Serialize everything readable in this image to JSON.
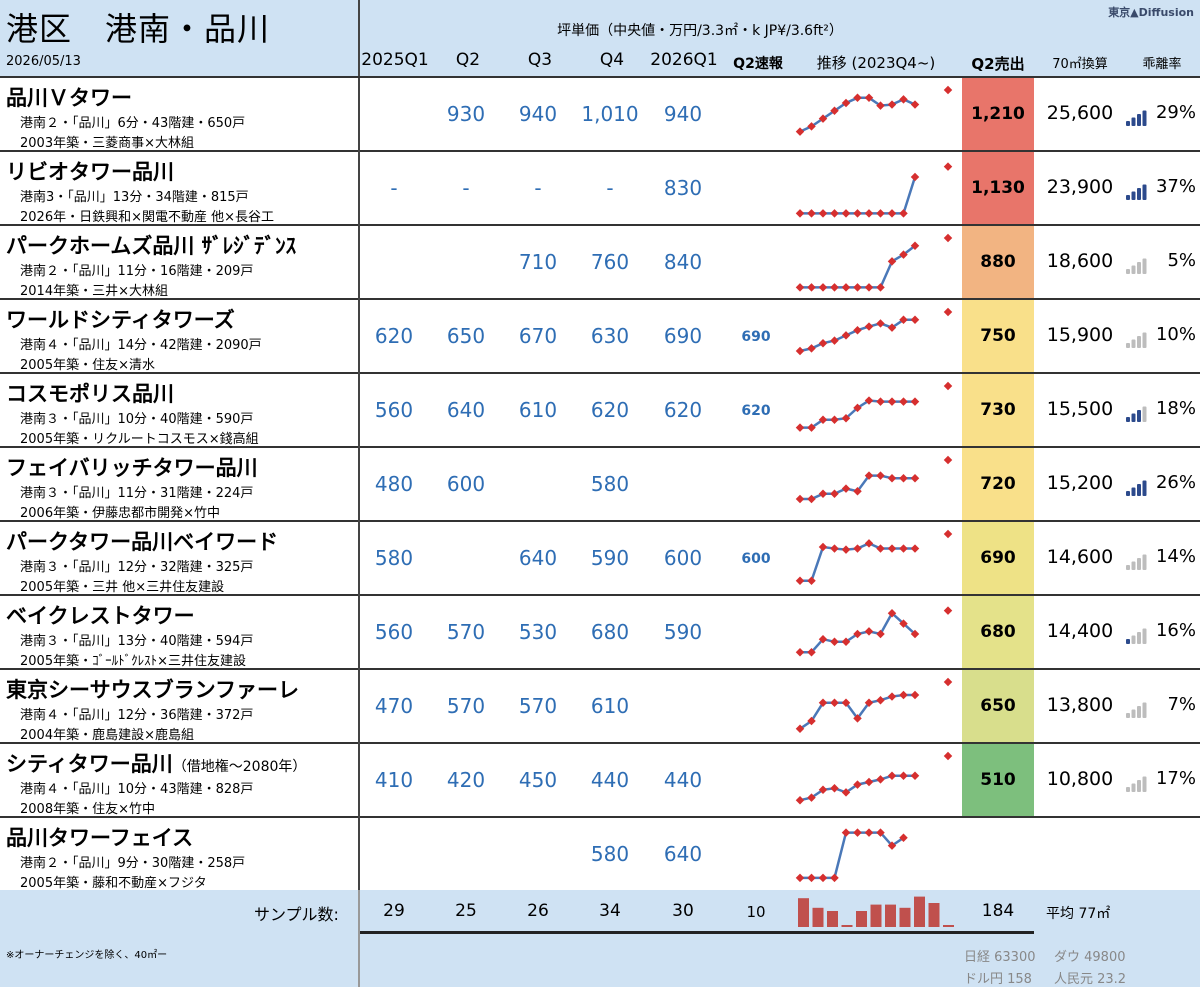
{
  "header": {
    "area": "港区　港南・品川",
    "date": "2026/05/13",
    "unit": "坪単価（中央値・万円/3.3㎡・k JP¥/3.6ft²）",
    "brand": "東京▲Diffusion",
    "columns": [
      "2025Q1",
      "Q2",
      "Q3",
      "Q4",
      "2026Q1",
      "Q2速報",
      "推移 (2023Q4~)",
      "Q2売出",
      "70㎡換算",
      "乖離率"
    ]
  },
  "colors": {
    "header_bg": "#cfe2f3",
    "value_blue": "#2e6db4",
    "spark_line": "#4a78b8",
    "spark_dot": "#d62f2f"
  },
  "rows": [
    {
      "name": "品川Ｖタワー",
      "note": "",
      "info1": "港南２・「品川」6分・43階建・650戸",
      "info2": "2003年築・三菱商事×大林組",
      "q": [
        "",
        "930",
        "940",
        "1,010",
        "940"
      ],
      "speed": "",
      "sales": "1,210",
      "sales_color": "#e8756a",
      "conv": "25,600",
      "signal": 4,
      "dev": "29%",
      "spark": [
        0.2,
        0.3,
        0.45,
        0.6,
        0.75,
        0.85,
        0.85,
        0.7,
        0.72,
        0.82,
        0.72
      ],
      "spark_last": 1.0
    },
    {
      "name": "リビオタワー品川",
      "note": "",
      "info1": "港南3・「品川」13分・34階建・815戸",
      "info2": "2026年・日鉄興和×関電不動産 他×長谷工",
      "q": [
        "-",
        "-",
        "-",
        "-",
        "830"
      ],
      "speed": "",
      "sales": "1,130",
      "sales_color": "#e8756a",
      "conv": "23,900",
      "signal": 4,
      "dev": "37%",
      "spark": [
        0.05,
        0.05,
        0.05,
        0.05,
        0.05,
        0.05,
        0.05,
        0.05,
        0.05,
        0.05,
        0.75
      ],
      "spark_last": 0.95
    },
    {
      "name": "パークホームズ品川 ｻﾞﾚｼﾞﾃﾞﾝｽ",
      "note": "",
      "info1": "港南２・「品川」11分・16階建・209戸",
      "info2": "2014年築・三井×大林組",
      "q": [
        "",
        "",
        "710",
        "760",
        "840"
      ],
      "speed": "",
      "sales": "880",
      "sales_color": "#f2b482",
      "conv": "18,600",
      "signal": 0,
      "dev": "5%",
      "spark": [
        0.05,
        0.05,
        0.05,
        0.05,
        0.05,
        0.05,
        0.05,
        0.05,
        0.55,
        0.68,
        0.85
      ],
      "spark_last": 1.0
    },
    {
      "name": "ワールドシティタワーズ",
      "note": "",
      "info1": "港南４・「品川」14分・42階建・2090戸",
      "info2": "2005年築・住友×清水",
      "q": [
        "620",
        "650",
        "670",
        "630",
        "690"
      ],
      "speed": "690",
      "sales": "750",
      "sales_color": "#f9e08a",
      "conv": "15,900",
      "signal": 0,
      "dev": "10%",
      "spark": [
        0.25,
        0.3,
        0.4,
        0.45,
        0.55,
        0.65,
        0.72,
        0.78,
        0.7,
        0.85,
        0.85
      ],
      "spark_last": 1.0
    },
    {
      "name": "コスモポリス品川",
      "note": "",
      "info1": "港南３・「品川」10分・40階建・590戸",
      "info2": "2005年築・リクルートコスモス×錢高組",
      "q": [
        "560",
        "640",
        "610",
        "620",
        "620"
      ],
      "speed": "620",
      "sales": "730",
      "sales_color": "#f9e08a",
      "conv": "15,500",
      "signal": 3,
      "dev": "18%",
      "spark": [
        0.2,
        0.2,
        0.35,
        0.35,
        0.38,
        0.58,
        0.72,
        0.7,
        0.7,
        0.7,
        0.7
      ],
      "spark_last": 1.0
    },
    {
      "name": "フェイバリッチタワー品川",
      "note": "",
      "info1": "港南３・「品川」11分・31階建・224戸",
      "info2": "2006年築・伊藤忠都市開発×竹中",
      "q": [
        "480",
        "600",
        "",
        "580",
        ""
      ],
      "speed": "",
      "sales": "720",
      "sales_color": "#f9e08a",
      "conv": "15,200",
      "signal": 4,
      "dev": "26%",
      "spark": [
        0.25,
        0.25,
        0.35,
        0.35,
        0.45,
        0.4,
        0.7,
        0.7,
        0.65,
        0.65,
        0.65
      ],
      "spark_last": 1.0
    },
    {
      "name": "パークタワー品川ベイワード",
      "note": "",
      "info1": "港南３・「品川」12分・32階建・325戸",
      "info2": "2005年築・三井 他×三井住友建設",
      "q": [
        "580",
        "",
        "640",
        "590",
        "600"
      ],
      "speed": "600",
      "sales": "690",
      "sales_color": "#eee286",
      "conv": "14,600",
      "signal": 0,
      "dev": "14%",
      "spark": [
        0.1,
        0.1,
        0.75,
        0.72,
        0.7,
        0.72,
        0.82,
        0.72,
        0.72,
        0.72,
        0.72
      ],
      "spark_last": 1.0
    },
    {
      "name": "ベイクレストタワー",
      "note": "",
      "info1": "港南３・「品川」13分・40階建・594戸",
      "info2": "2005年築・ｺﾞｰﾙﾄﾞｸﾚｽﾄ×三井住友建設",
      "q": [
        "560",
        "570",
        "530",
        "680",
        "590"
      ],
      "speed": "",
      "sales": "680",
      "sales_color": "#e4e28a",
      "conv": "14,400",
      "signal": 1,
      "dev": "16%",
      "spark": [
        0.15,
        0.15,
        0.4,
        0.35,
        0.35,
        0.5,
        0.55,
        0.5,
        0.9,
        0.7,
        0.5
      ],
      "spark_last": 0.95
    },
    {
      "name": "東京シーサウスブランファーレ",
      "note": "",
      "info1": "港南４・「品川」12分・36階建・372戸",
      "info2": "2004年築・鹿島建設×鹿島組",
      "q": [
        "470",
        "570",
        "570",
        "610",
        ""
      ],
      "speed": "",
      "sales": "650",
      "sales_color": "#d8de8c",
      "conv": "13,800",
      "signal": 0,
      "dev": "7%",
      "spark": [
        0.1,
        0.25,
        0.6,
        0.6,
        0.6,
        0.3,
        0.6,
        0.65,
        0.72,
        0.75,
        0.75
      ],
      "spark_last": 1.0
    },
    {
      "name": "シティタワー品川",
      "note": "（借地権〜2080年）",
      "info1": "港南４・「品川」10分・43階建・828戸",
      "info2": "2008年築・住友×竹中",
      "q": [
        "410",
        "420",
        "450",
        "440",
        "440"
      ],
      "speed": "",
      "sales": "510",
      "sales_color": "#7dbf7d",
      "conv": "10,800",
      "signal": 0,
      "dev": "17%",
      "spark": [
        0.15,
        0.2,
        0.35,
        0.38,
        0.3,
        0.45,
        0.5,
        0.55,
        0.62,
        0.62,
        0.62
      ],
      "spark_last": 1.0
    },
    {
      "name": "品川タワーフェイス",
      "note": "",
      "info1": "港南２・「品川」9分・30階建・258戸",
      "info2": "2005年築・藤和不動産×フジタ",
      "q": [
        "",
        "",
        "",
        "580",
        "640"
      ],
      "speed": "",
      "sales": "",
      "sales_color": "#ffffff",
      "conv": "",
      "signal": -1,
      "dev": "",
      "spark": [
        0.08,
        0.08,
        0.08,
        0.08,
        0.95,
        0.95,
        0.95,
        0.95,
        0.7,
        0.85
      ],
      "spark_last": null
    }
  ],
  "footer": {
    "sample_label": "サンプル数:",
    "samples": [
      "29",
      "25",
      "26",
      "34",
      "30",
      "10"
    ],
    "sample_bars": [
      0.9,
      0.6,
      0.5,
      0.05,
      0.5,
      0.7,
      0.7,
      0.6,
      0.95,
      0.75,
      0.05
    ],
    "total": "184",
    "avg": "平均 77㎡",
    "note": "※オーナーチェンジを除く、40㎡ー",
    "nikkei": "日経 63300",
    "dow": "ダウ 49800",
    "usdjpy": "ドル円 158",
    "cny": "人民元 23.2"
  }
}
